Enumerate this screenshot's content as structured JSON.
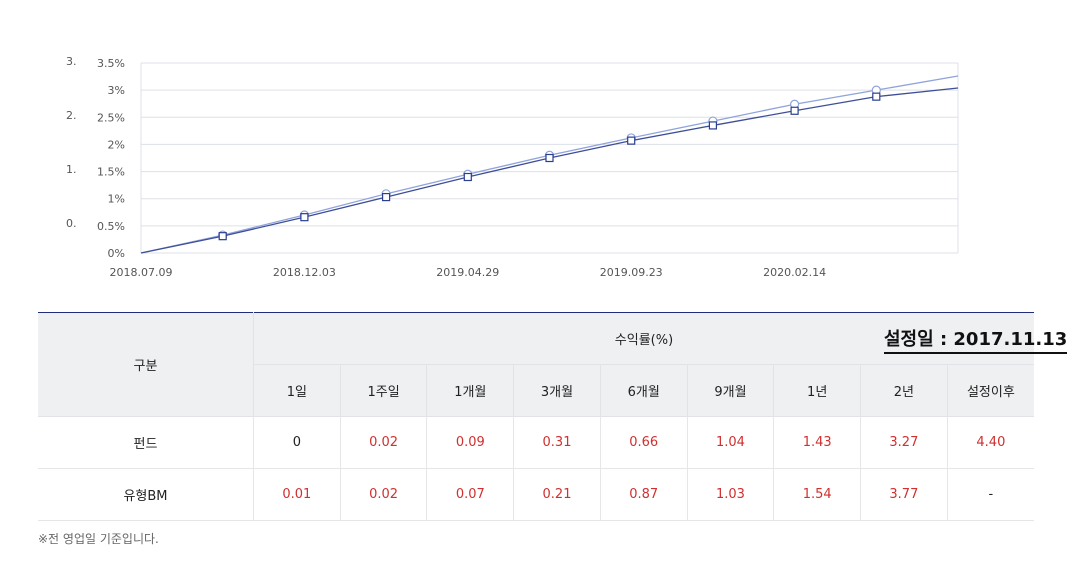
{
  "chart_data": {
    "type": "line",
    "extra_left_labels": [
      "3.",
      "2.",
      "1.",
      "0."
    ],
    "y_ticks": [
      "0%",
      "0.5%",
      "1%",
      "1.5%",
      "2%",
      "2.5%",
      "3%",
      "3.5%"
    ],
    "ylim": [
      0,
      3.5
    ],
    "x_tick_labels": [
      "2018.07.09",
      "2018.12.03",
      "2019.04.29",
      "2019.09.23",
      "2020.02.14"
    ],
    "grid": true,
    "series": [
      {
        "marker": "circle",
        "color": "#8fa3dc",
        "values": [
          0,
          0.33,
          0.7,
          1.09,
          1.45,
          1.8,
          2.12,
          2.43,
          2.74,
          3.0,
          3.26
        ]
      },
      {
        "marker": "square",
        "color": "#3e4f96",
        "values": [
          0,
          0.31,
          0.66,
          1.03,
          1.4,
          1.75,
          2.07,
          2.35,
          2.62,
          2.88,
          3.04
        ]
      }
    ]
  },
  "table": {
    "col_header": "구분",
    "group_header": "수익률(%)",
    "periods": [
      "1일",
      "1주일",
      "1개월",
      "3개월",
      "6개월",
      "9개월",
      "1년",
      "2년",
      "설정이후"
    ],
    "rows": [
      {
        "label": "펀드",
        "values": [
          "0",
          "0.02",
          "0.09",
          "0.31",
          "0.66",
          "1.04",
          "1.43",
          "3.27",
          "4.40"
        ]
      },
      {
        "label": "유형BM",
        "values": [
          "0.01",
          "0.02",
          "0.07",
          "0.21",
          "0.87",
          "1.03",
          "1.54",
          "3.77",
          "-"
        ]
      }
    ]
  },
  "setup_date": "설정일 : 2017.11.13",
  "note": "※전 영업일 기준입니다.",
  "colors": {
    "accent": "#1f2d7a",
    "positive": "#d0302f"
  }
}
